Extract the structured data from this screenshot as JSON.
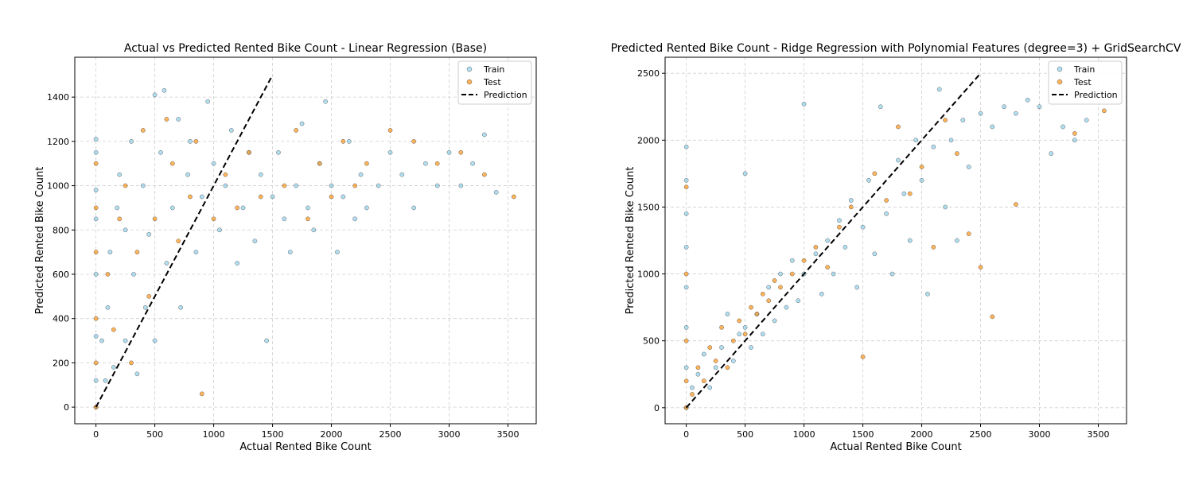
{
  "colors": {
    "train": "#87ceeb",
    "test": "#ff8c00",
    "prediction": "#000000"
  },
  "chart_data": [
    {
      "type": "scatter",
      "title": "Actual vs Predicted Rented Bike Count - Linear Regression (Base)",
      "xlabel": "Actual Rented Bike Count",
      "ylabel": "Predicted Rented Bike Count",
      "xlim": [
        -180,
        3740
      ],
      "ylim": [
        -75,
        1580
      ],
      "xticks": [
        0,
        500,
        1000,
        1500,
        2000,
        2500,
        3000,
        3500
      ],
      "yticks": [
        0,
        200,
        400,
        600,
        800,
        1000,
        1200,
        1400
      ],
      "grid": true,
      "legend_position": "top-right",
      "legend": [
        "Train",
        "Test",
        "Prediction"
      ],
      "series": [
        {
          "name": "Train",
          "style": "scatter",
          "color": "#87ceeb",
          "points": [
            [
              0,
              1210
            ],
            [
              0,
              1150
            ],
            [
              0,
              980
            ],
            [
              0,
              850
            ],
            [
              0,
              600
            ],
            [
              0,
              320
            ],
            [
              0,
              120
            ],
            [
              0,
              0
            ],
            [
              50,
              300
            ],
            [
              80,
              120
            ],
            [
              100,
              450
            ],
            [
              120,
              700
            ],
            [
              150,
              180
            ],
            [
              180,
              900
            ],
            [
              200,
              1050
            ],
            [
              250,
              300
            ],
            [
              250,
              800
            ],
            [
              300,
              1200
            ],
            [
              320,
              600
            ],
            [
              350,
              150
            ],
            [
              400,
              1000
            ],
            [
              420,
              450
            ],
            [
              450,
              780
            ],
            [
              500,
              1410
            ],
            [
              500,
              300
            ],
            [
              550,
              1150
            ],
            [
              580,
              1430
            ],
            [
              600,
              650
            ],
            [
              650,
              900
            ],
            [
              700,
              1300
            ],
            [
              720,
              450
            ],
            [
              780,
              1050
            ],
            [
              800,
              1200
            ],
            [
              850,
              700
            ],
            [
              900,
              950
            ],
            [
              950,
              1380
            ],
            [
              1000,
              1100
            ],
            [
              1050,
              800
            ],
            [
              1100,
              1000
            ],
            [
              1150,
              1250
            ],
            [
              1200,
              650
            ],
            [
              1250,
              900
            ],
            [
              1300,
              1150
            ],
            [
              1350,
              750
            ],
            [
              1400,
              1050
            ],
            [
              1450,
              300
            ],
            [
              1500,
              950
            ],
            [
              1550,
              1150
            ],
            [
              1600,
              850
            ],
            [
              1650,
              700
            ],
            [
              1700,
              1000
            ],
            [
              1750,
              1280
            ],
            [
              1800,
              900
            ],
            [
              1850,
              800
            ],
            [
              1900,
              1100
            ],
            [
              1950,
              1380
            ],
            [
              2000,
              1000
            ],
            [
              2050,
              700
            ],
            [
              2100,
              950
            ],
            [
              2150,
              1200
            ],
            [
              2200,
              850
            ],
            [
              2250,
              1050
            ],
            [
              2300,
              900
            ],
            [
              2400,
              1000
            ],
            [
              2500,
              1150
            ],
            [
              2600,
              1050
            ],
            [
              2700,
              900
            ],
            [
              2800,
              1100
            ],
            [
              2900,
              1000
            ],
            [
              3000,
              1150
            ],
            [
              3100,
              1000
            ],
            [
              3200,
              1100
            ],
            [
              3300,
              1230
            ],
            [
              3400,
              970
            ]
          ]
        },
        {
          "name": "Test",
          "style": "scatter",
          "color": "#ff8c00",
          "points": [
            [
              0,
              1100
            ],
            [
              0,
              900
            ],
            [
              0,
              700
            ],
            [
              0,
              400
            ],
            [
              0,
              200
            ],
            [
              0,
              0
            ],
            [
              100,
              600
            ],
            [
              150,
              350
            ],
            [
              200,
              850
            ],
            [
              250,
              1000
            ],
            [
              300,
              200
            ],
            [
              350,
              700
            ],
            [
              400,
              1250
            ],
            [
              450,
              500
            ],
            [
              500,
              850
            ],
            [
              600,
              1300
            ],
            [
              650,
              1100
            ],
            [
              700,
              750
            ],
            [
              800,
              950
            ],
            [
              850,
              1200
            ],
            [
              900,
              60
            ],
            [
              1000,
              850
            ],
            [
              1100,
              1050
            ],
            [
              1200,
              900
            ],
            [
              1300,
              1150
            ],
            [
              1400,
              950
            ],
            [
              1600,
              1000
            ],
            [
              1700,
              1250
            ],
            [
              1800,
              850
            ],
            [
              1900,
              1100
            ],
            [
              2000,
              950
            ],
            [
              2100,
              1200
            ],
            [
              2200,
              1000
            ],
            [
              2300,
              1100
            ],
            [
              2500,
              1250
            ],
            [
              2700,
              1200
            ],
            [
              2900,
              1100
            ],
            [
              3100,
              1150
            ],
            [
              3300,
              1050
            ],
            [
              3550,
              950
            ]
          ]
        },
        {
          "name": "Prediction",
          "style": "line",
          "color": "#000000",
          "dashed": true,
          "points": [
            [
              0,
              0
            ],
            [
              1500,
              1500
            ]
          ]
        }
      ]
    },
    {
      "type": "scatter",
      "title": "Predicted Rented Bike Count - Ridge Regression with Polynomial Features (degree=3) + GridSearchCV",
      "xlabel": "Actual Rented Bike Count",
      "ylabel": "Predicted Rented Bike Count",
      "xlim": [
        -180,
        3740
      ],
      "ylim": [
        -120,
        2620
      ],
      "xticks": [
        0,
        500,
        1000,
        1500,
        2000,
        2500,
        3000,
        3500
      ],
      "yticks": [
        0,
        500,
        1000,
        1500,
        2000,
        2500
      ],
      "grid": true,
      "legend_position": "top-right",
      "legend": [
        "Train",
        "Test",
        "Prediction"
      ],
      "series": [
        {
          "name": "Train",
          "style": "scatter",
          "color": "#87ceeb",
          "points": [
            [
              0,
              1950
            ],
            [
              0,
              1700
            ],
            [
              0,
              1450
            ],
            [
              0,
              1200
            ],
            [
              0,
              900
            ],
            [
              0,
              600
            ],
            [
              0,
              300
            ],
            [
              0,
              0
            ],
            [
              50,
              150
            ],
            [
              100,
              250
            ],
            [
              150,
              400
            ],
            [
              200,
              150
            ],
            [
              250,
              300
            ],
            [
              300,
              450
            ],
            [
              350,
              700
            ],
            [
              400,
              350
            ],
            [
              450,
              550
            ],
            [
              500,
              1750
            ],
            [
              500,
              600
            ],
            [
              550,
              450
            ],
            [
              600,
              700
            ],
            [
              650,
              550
            ],
            [
              700,
              900
            ],
            [
              750,
              650
            ],
            [
              800,
              1000
            ],
            [
              850,
              750
            ],
            [
              900,
              1100
            ],
            [
              950,
              800
            ],
            [
              1000,
              2270
            ],
            [
              1000,
              1000
            ],
            [
              1100,
              1150
            ],
            [
              1150,
              850
            ],
            [
              1200,
              1250
            ],
            [
              1250,
              1000
            ],
            [
              1300,
              1400
            ],
            [
              1350,
              1200
            ],
            [
              1400,
              1550
            ],
            [
              1450,
              900
            ],
            [
              1500,
              1350
            ],
            [
              1550,
              1700
            ],
            [
              1600,
              1150
            ],
            [
              1650,
              2250
            ],
            [
              1700,
              1450
            ],
            [
              1750,
              1000
            ],
            [
              1800,
              1850
            ],
            [
              1850,
              1600
            ],
            [
              1900,
              1250
            ],
            [
              1950,
              2000
            ],
            [
              2000,
              1700
            ],
            [
              2050,
              850
            ],
            [
              2100,
              1950
            ],
            [
              2150,
              2380
            ],
            [
              2200,
              1500
            ],
            [
              2250,
              2000
            ],
            [
              2300,
              1250
            ],
            [
              2350,
              2150
            ],
            [
              2400,
              1800
            ],
            [
              2500,
              2200
            ],
            [
              2600,
              2100
            ],
            [
              2700,
              2250
            ],
            [
              2800,
              2200
            ],
            [
              2900,
              2300
            ],
            [
              3000,
              2250
            ],
            [
              3100,
              1900
            ],
            [
              3200,
              2100
            ],
            [
              3300,
              2000
            ],
            [
              3400,
              2150
            ]
          ]
        },
        {
          "name": "Test",
          "style": "scatter",
          "color": "#ff8c00",
          "points": [
            [
              0,
              1650
            ],
            [
              0,
              1000
            ],
            [
              0,
              500
            ],
            [
              0,
              200
            ],
            [
              0,
              0
            ],
            [
              50,
              100
            ],
            [
              100,
              300
            ],
            [
              150,
              200
            ],
            [
              200,
              450
            ],
            [
              250,
              350
            ],
            [
              300,
              600
            ],
            [
              350,
              300
            ],
            [
              400,
              500
            ],
            [
              450,
              650
            ],
            [
              500,
              550
            ],
            [
              550,
              750
            ],
            [
              600,
              700
            ],
            [
              650,
              850
            ],
            [
              700,
              800
            ],
            [
              750,
              950
            ],
            [
              800,
              900
            ],
            [
              900,
              1000
            ],
            [
              1000,
              1100
            ],
            [
              1100,
              1200
            ],
            [
              1200,
              1050
            ],
            [
              1300,
              1350
            ],
            [
              1400,
              1500
            ],
            [
              1500,
              380
            ],
            [
              1600,
              1750
            ],
            [
              1700,
              1550
            ],
            [
              1800,
              2100
            ],
            [
              1900,
              1600
            ],
            [
              2000,
              1800
            ],
            [
              2100,
              1200
            ],
            [
              2200,
              2150
            ],
            [
              2300,
              1900
            ],
            [
              2400,
              1300
            ],
            [
              2500,
              1050
            ],
            [
              2600,
              680
            ],
            [
              2800,
              1520
            ],
            [
              3300,
              2050
            ],
            [
              3550,
              2220
            ]
          ]
        },
        {
          "name": "Prediction",
          "style": "line",
          "color": "#000000",
          "dashed": true,
          "points": [
            [
              0,
              0
            ],
            [
              2500,
              2500
            ]
          ]
        }
      ]
    }
  ]
}
